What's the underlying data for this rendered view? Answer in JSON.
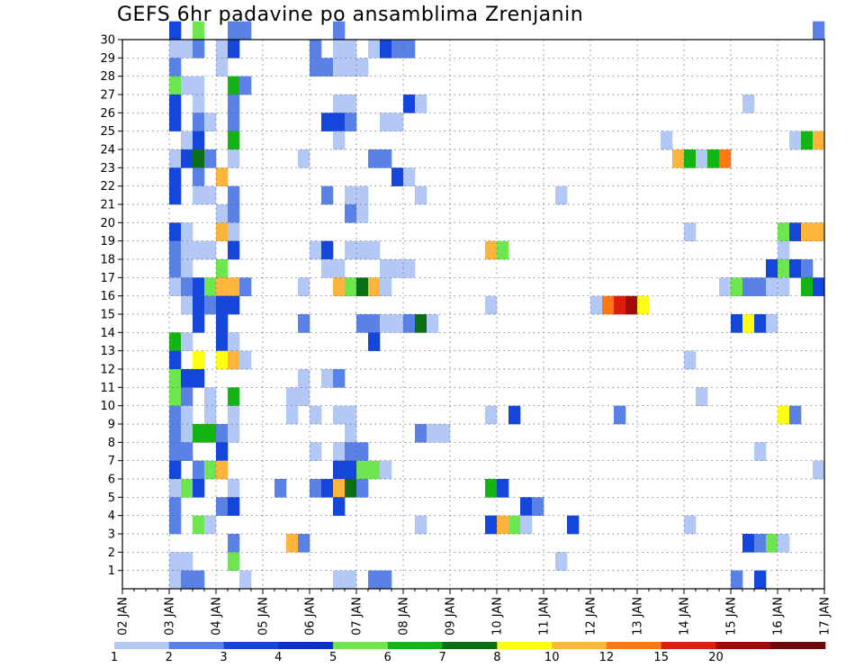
{
  "chart_data": {
    "type": "heatmap",
    "title": "GEFS 6hr padavine po ansamblima Zrenjanin",
    "xlabel": "",
    "ylabel": "",
    "x_unit": "6-hour steps from 02 JAN 00z",
    "x_tick_labels": [
      "02 JAN",
      "03 JAN",
      "04 JAN",
      "05 JAN",
      "06 JAN",
      "07 JAN",
      "08 JAN",
      "09 JAN",
      "10 JAN",
      "11 JAN",
      "12 JAN",
      "13 JAN",
      "14 JAN",
      "15 JAN",
      "16 JAN",
      "17 JAN"
    ],
    "y_tick_labels": [
      "1",
      "2",
      "3",
      "4",
      "5",
      "6",
      "7",
      "8",
      "9",
      "10",
      "11",
      "12",
      "13",
      "14",
      "15",
      "16",
      "17",
      "18",
      "19",
      "20",
      "21",
      "22",
      "23",
      "24",
      "25",
      "26",
      "27",
      "28",
      "29",
      "30"
    ],
    "xlim": [
      0,
      60
    ],
    "ylim": [
      0,
      30
    ],
    "grid": true,
    "legend": {
      "placement": "bottom",
      "labels": [
        "1",
        "2",
        "3",
        "4",
        "5",
        "6",
        "7",
        "8",
        "10",
        "12",
        "15",
        "20"
      ],
      "colors": [
        "#b4c8f5",
        "#5a82e6",
        "#1446dc",
        "#0a32c8",
        "#6ee650",
        "#14b414",
        "#0a6e14",
        "#ffff14",
        "#ffb43c",
        "#ff7814",
        "#dc1e0a",
        "#a00a0a",
        "#6e0a0a"
      ]
    },
    "cells": [
      [
        30,
        4,
        3
      ],
      [
        30,
        6,
        5
      ],
      [
        30,
        9,
        2
      ],
      [
        30,
        10,
        2
      ],
      [
        30,
        18,
        2
      ],
      [
        30,
        59,
        2
      ],
      [
        29,
        4,
        1
      ],
      [
        29,
        5,
        1
      ],
      [
        29,
        6,
        2
      ],
      [
        29,
        8,
        1
      ],
      [
        29,
        9,
        3
      ],
      [
        29,
        16,
        2
      ],
      [
        29,
        18,
        1
      ],
      [
        29,
        19,
        1
      ],
      [
        29,
        21,
        1
      ],
      [
        29,
        22,
        3
      ],
      [
        29,
        23,
        2
      ],
      [
        29,
        24,
        2
      ],
      [
        28,
        4,
        2
      ],
      [
        28,
        8,
        1
      ],
      [
        28,
        16,
        2
      ],
      [
        28,
        17,
        2
      ],
      [
        28,
        18,
        1
      ],
      [
        28,
        19,
        1
      ],
      [
        28,
        20,
        1
      ],
      [
        27,
        4,
        5
      ],
      [
        27,
        5,
        1
      ],
      [
        27,
        6,
        1
      ],
      [
        27,
        9,
        6
      ],
      [
        27,
        10,
        2
      ],
      [
        26,
        4,
        3
      ],
      [
        26,
        6,
        1
      ],
      [
        26,
        9,
        2
      ],
      [
        26,
        18,
        1
      ],
      [
        26,
        19,
        1
      ],
      [
        26,
        24,
        3
      ],
      [
        26,
        25,
        1
      ],
      [
        26,
        53,
        1
      ],
      [
        25,
        4,
        3
      ],
      [
        25,
        6,
        2
      ],
      [
        25,
        7,
        1
      ],
      [
        25,
        9,
        2
      ],
      [
        25,
        17,
        3
      ],
      [
        25,
        18,
        3
      ],
      [
        25,
        19,
        2
      ],
      [
        25,
        22,
        1
      ],
      [
        25,
        23,
        1
      ],
      [
        24,
        5,
        1
      ],
      [
        24,
        6,
        3
      ],
      [
        24,
        9,
        6
      ],
      [
        24,
        18,
        1
      ],
      [
        24,
        46,
        1
      ],
      [
        24,
        57,
        1
      ],
      [
        24,
        58,
        6
      ],
      [
        24,
        59,
        10
      ],
      [
        23,
        4,
        1
      ],
      [
        23,
        5,
        3
      ],
      [
        23,
        6,
        7
      ],
      [
        23,
        7,
        2
      ],
      [
        23,
        9,
        1
      ],
      [
        23,
        15,
        1
      ],
      [
        23,
        21,
        2
      ],
      [
        23,
        22,
        2
      ],
      [
        23,
        47,
        10
      ],
      [
        23,
        48,
        6
      ],
      [
        23,
        49,
        1
      ],
      [
        23,
        50,
        6
      ],
      [
        23,
        51,
        12
      ],
      [
        22,
        4,
        3
      ],
      [
        22,
        6,
        2
      ],
      [
        22,
        8,
        10
      ],
      [
        22,
        23,
        3
      ],
      [
        22,
        24,
        1
      ],
      [
        21,
        4,
        3
      ],
      [
        21,
        6,
        1
      ],
      [
        21,
        7,
        1
      ],
      [
        21,
        9,
        2
      ],
      [
        21,
        17,
        2
      ],
      [
        21,
        19,
        1
      ],
      [
        21,
        20,
        1
      ],
      [
        21,
        25,
        1
      ],
      [
        21,
        37,
        1
      ],
      [
        20,
        8,
        1
      ],
      [
        20,
        9,
        2
      ],
      [
        20,
        19,
        2
      ],
      [
        20,
        20,
        1
      ],
      [
        19,
        4,
        3
      ],
      [
        19,
        5,
        1
      ],
      [
        19,
        8,
        10
      ],
      [
        19,
        9,
        1
      ],
      [
        19,
        48,
        1
      ],
      [
        19,
        56,
        5
      ],
      [
        19,
        57,
        3
      ],
      [
        19,
        58,
        10
      ],
      [
        19,
        59,
        10
      ],
      [
        18,
        4,
        2
      ],
      [
        18,
        5,
        1
      ],
      [
        18,
        6,
        1
      ],
      [
        18,
        7,
        1
      ],
      [
        18,
        9,
        3
      ],
      [
        18,
        16,
        1
      ],
      [
        18,
        17,
        3
      ],
      [
        18,
        19,
        1
      ],
      [
        18,
        20,
        1
      ],
      [
        18,
        21,
        1
      ],
      [
        18,
        31,
        10
      ],
      [
        18,
        32,
        5
      ],
      [
        18,
        56,
        1
      ],
      [
        17,
        4,
        2
      ],
      [
        17,
        5,
        1
      ],
      [
        17,
        8,
        5
      ],
      [
        17,
        17,
        1
      ],
      [
        17,
        18,
        1
      ],
      [
        17,
        22,
        1
      ],
      [
        17,
        23,
        1
      ],
      [
        17,
        24,
        1
      ],
      [
        17,
        55,
        3
      ],
      [
        17,
        56,
        5
      ],
      [
        17,
        57,
        3
      ],
      [
        17,
        58,
        2
      ],
      [
        16,
        4,
        1
      ],
      [
        16,
        5,
        2
      ],
      [
        16,
        6,
        3
      ],
      [
        16,
        7,
        5
      ],
      [
        16,
        8,
        10
      ],
      [
        16,
        9,
        10
      ],
      [
        16,
        10,
        2
      ],
      [
        16,
        15,
        1
      ],
      [
        16,
        18,
        10
      ],
      [
        16,
        19,
        5
      ],
      [
        16,
        20,
        7
      ],
      [
        16,
        21,
        10
      ],
      [
        16,
        22,
        1
      ],
      [
        16,
        51,
        1
      ],
      [
        16,
        52,
        5
      ],
      [
        16,
        53,
        2
      ],
      [
        16,
        54,
        2
      ],
      [
        16,
        55,
        1
      ],
      [
        16,
        56,
        1
      ],
      [
        16,
        58,
        6
      ],
      [
        16,
        59,
        3
      ],
      [
        15,
        5,
        1
      ],
      [
        15,
        6,
        3
      ],
      [
        15,
        7,
        2
      ],
      [
        15,
        8,
        3
      ],
      [
        15,
        9,
        3
      ],
      [
        15,
        31,
        1
      ],
      [
        15,
        40,
        1
      ],
      [
        15,
        41,
        12
      ],
      [
        15,
        42,
        15
      ],
      [
        15,
        43,
        20
      ],
      [
        15,
        44,
        8
      ],
      [
        14,
        6,
        3
      ],
      [
        14,
        8,
        3
      ],
      [
        14,
        15,
        2
      ],
      [
        14,
        20,
        2
      ],
      [
        14,
        21,
        2
      ],
      [
        14,
        22,
        1
      ],
      [
        14,
        23,
        1
      ],
      [
        14,
        24,
        2
      ],
      [
        14,
        25,
        7
      ],
      [
        14,
        26,
        1
      ],
      [
        14,
        52,
        3
      ],
      [
        14,
        53,
        8
      ],
      [
        14,
        54,
        3
      ],
      [
        14,
        55,
        1
      ],
      [
        13,
        4,
        6
      ],
      [
        13,
        5,
        1
      ],
      [
        13,
        8,
        3
      ],
      [
        13,
        9,
        1
      ],
      [
        13,
        21,
        3
      ],
      [
        12,
        4,
        3
      ],
      [
        12,
        6,
        8
      ],
      [
        12,
        8,
        8
      ],
      [
        12,
        9,
        10
      ],
      [
        12,
        10,
        1
      ],
      [
        12,
        48,
        1
      ],
      [
        11,
        4,
        5
      ],
      [
        11,
        5,
        3
      ],
      [
        11,
        6,
        3
      ],
      [
        11,
        15,
        1
      ],
      [
        11,
        17,
        1
      ],
      [
        11,
        18,
        2
      ],
      [
        10,
        4,
        5
      ],
      [
        10,
        5,
        2
      ],
      [
        10,
        7,
        1
      ],
      [
        10,
        9,
        6
      ],
      [
        10,
        14,
        1
      ],
      [
        10,
        15,
        1
      ],
      [
        10,
        49,
        1
      ],
      [
        9,
        4,
        2
      ],
      [
        9,
        5,
        1
      ],
      [
        9,
        7,
        1
      ],
      [
        9,
        9,
        1
      ],
      [
        9,
        14,
        1
      ],
      [
        9,
        16,
        1
      ],
      [
        9,
        18,
        1
      ],
      [
        9,
        19,
        1
      ],
      [
        9,
        31,
        1
      ],
      [
        9,
        33,
        3
      ],
      [
        9,
        42,
        2
      ],
      [
        9,
        56,
        8
      ],
      [
        9,
        57,
        2
      ],
      [
        8,
        4,
        2
      ],
      [
        8,
        5,
        1
      ],
      [
        8,
        6,
        6
      ],
      [
        8,
        7,
        6
      ],
      [
        8,
        8,
        2
      ],
      [
        8,
        9,
        1
      ],
      [
        8,
        19,
        1
      ],
      [
        8,
        25,
        2
      ],
      [
        8,
        26,
        1
      ],
      [
        8,
        27,
        1
      ],
      [
        7,
        4,
        2
      ],
      [
        7,
        5,
        2
      ],
      [
        7,
        8,
        3
      ],
      [
        7,
        16,
        1
      ],
      [
        7,
        18,
        1
      ],
      [
        7,
        19,
        2
      ],
      [
        7,
        20,
        2
      ],
      [
        7,
        54,
        1
      ],
      [
        6,
        4,
        3
      ],
      [
        6,
        6,
        2
      ],
      [
        6,
        7,
        5
      ],
      [
        6,
        8,
        10
      ],
      [
        6,
        18,
        3
      ],
      [
        6,
        19,
        3
      ],
      [
        6,
        20,
        5
      ],
      [
        6,
        21,
        5
      ],
      [
        6,
        22,
        1
      ],
      [
        6,
        59,
        1
      ],
      [
        5,
        4,
        1
      ],
      [
        5,
        5,
        5
      ],
      [
        5,
        6,
        3
      ],
      [
        5,
        9,
        1
      ],
      [
        5,
        13,
        2
      ],
      [
        5,
        16,
        2
      ],
      [
        5,
        17,
        3
      ],
      [
        5,
        18,
        10
      ],
      [
        5,
        19,
        7
      ],
      [
        5,
        20,
        2
      ],
      [
        5,
        31,
        6
      ],
      [
        5,
        32,
        3
      ],
      [
        4,
        4,
        2
      ],
      [
        4,
        8,
        2
      ],
      [
        4,
        9,
        3
      ],
      [
        4,
        18,
        3
      ],
      [
        4,
        34,
        3
      ],
      [
        4,
        35,
        2
      ],
      [
        3,
        4,
        2
      ],
      [
        3,
        6,
        5
      ],
      [
        3,
        7,
        1
      ],
      [
        3,
        25,
        1
      ],
      [
        3,
        31,
        3
      ],
      [
        3,
        32,
        10
      ],
      [
        3,
        33,
        5
      ],
      [
        3,
        34,
        1
      ],
      [
        3,
        38,
        3
      ],
      [
        3,
        48,
        1
      ],
      [
        2,
        9,
        2
      ],
      [
        2,
        14,
        10
      ],
      [
        2,
        15,
        2
      ],
      [
        2,
        53,
        3
      ],
      [
        2,
        54,
        2
      ],
      [
        2,
        55,
        5
      ],
      [
        2,
        56,
        1
      ],
      [
        1,
        4,
        1
      ],
      [
        1,
        5,
        1
      ],
      [
        1,
        9,
        5
      ],
      [
        1,
        37,
        1
      ],
      [
        0,
        4,
        1
      ],
      [
        0,
        5,
        2
      ],
      [
        0,
        6,
        2
      ],
      [
        0,
        10,
        1
      ],
      [
        0,
        18,
        1
      ],
      [
        0,
        19,
        1
      ],
      [
        0,
        21,
        2
      ],
      [
        0,
        22,
        2
      ],
      [
        0,
        52,
        2
      ],
      [
        0,
        54,
        3
      ]
    ]
  }
}
